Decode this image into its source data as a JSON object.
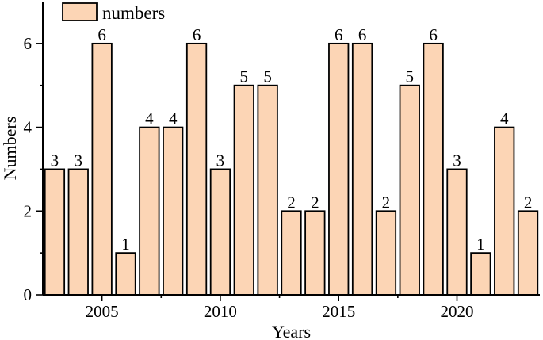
{
  "chart_data": {
    "type": "bar",
    "categories": [
      2003,
      2004,
      2005,
      2006,
      2007,
      2008,
      2009,
      2010,
      2011,
      2012,
      2013,
      2014,
      2015,
      2016,
      2017,
      2018,
      2019,
      2020,
      2021,
      2022,
      2023
    ],
    "series": [
      {
        "name": "numbers",
        "values": [
          3,
          3,
          6,
          1,
          4,
          4,
          6,
          3,
          5,
          5,
          2,
          2,
          6,
          6,
          2,
          5,
          6,
          3,
          1,
          4,
          2
        ],
        "color": "#fcd5b5"
      }
    ],
    "xlabel": "Years",
    "ylabel": "Numbers",
    "xlim": [
      2002.5,
      2023.5
    ],
    "ylim": [
      0,
      7
    ],
    "xticks": [
      2005,
      2010,
      2015,
      2020
    ],
    "yticks": [
      0,
      2,
      4,
      6
    ],
    "grid": false,
    "legend": "top-left",
    "data_labels": true
  }
}
